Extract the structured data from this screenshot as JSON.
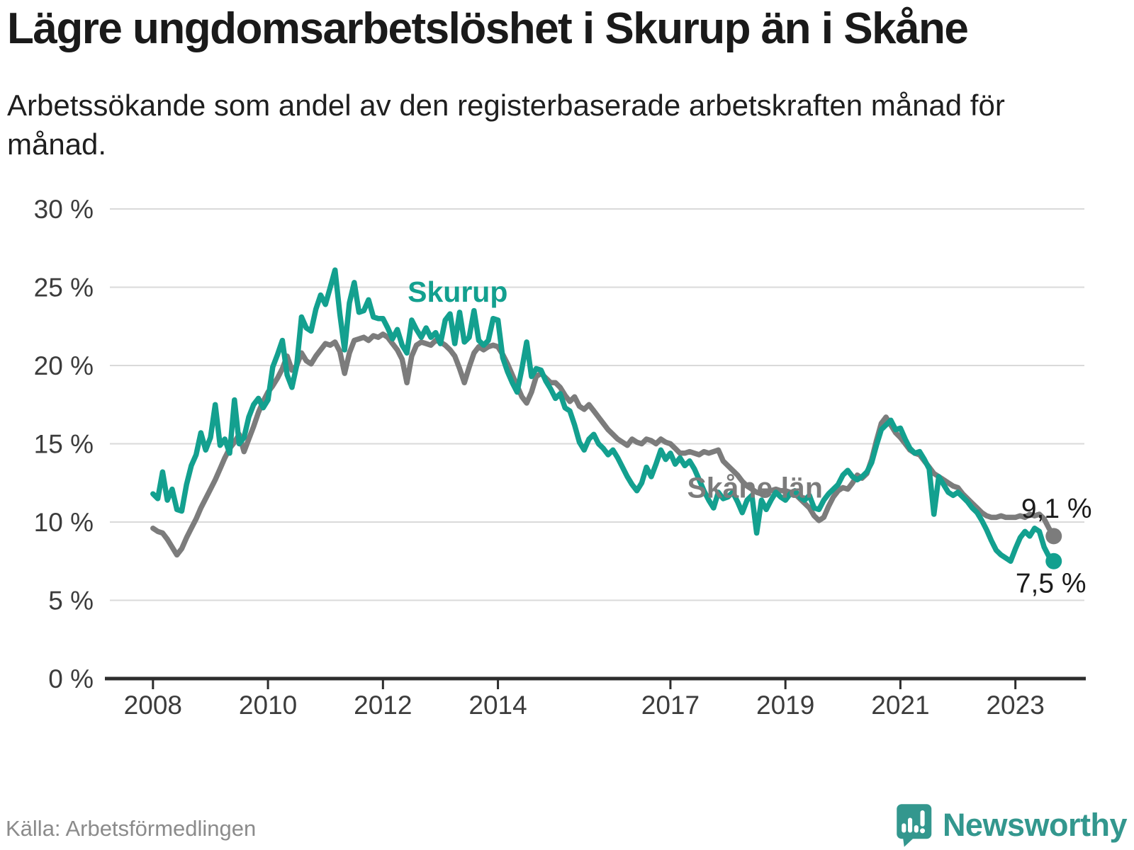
{
  "header": {
    "title": "Lägre ungdomsarbetslöshet i Skurup än i Skåne",
    "subtitle": "Arbetssökande som andel av den registerbaserade arbetskraften månad för månad."
  },
  "footer": {
    "source": "Källa: Arbetsförmedlingen",
    "brand": "Newsworthy"
  },
  "colors": {
    "skurup": "#13a08f",
    "skane": "#7c7c7c",
    "grid": "#dadada",
    "axis": "#2d2d2d",
    "tick_text": "#3c3c3c",
    "end_label_text": "#1b1b1b",
    "brand_teal": "#33978e"
  },
  "chart_data": {
    "type": "line",
    "title": "Lägre ungdomsarbetslöshet i Skurup än i Skåne",
    "xlabel": "",
    "ylabel": "Arbetssökande som andel av den registerbaserade arbetskraften",
    "grid": "horizontal",
    "x_start": 2008,
    "x_step": 0.0833333,
    "xlim": [
      2007.25,
      2024.2
    ],
    "ylim": [
      0,
      30
    ],
    "yticks": [
      {
        "v": 0,
        "label": "0 %"
      },
      {
        "v": 5,
        "label": "5 %"
      },
      {
        "v": 10,
        "label": "10 %"
      },
      {
        "v": 15,
        "label": "15 %"
      },
      {
        "v": 20,
        "label": "20 %"
      },
      {
        "v": 25,
        "label": "25 %"
      },
      {
        "v": 30,
        "label": "30 %"
      }
    ],
    "xticks": [
      {
        "v": 2008,
        "label": "2008"
      },
      {
        "v": 2010,
        "label": "2010"
      },
      {
        "v": 2012,
        "label": "2012"
      },
      {
        "v": 2014,
        "label": "2014"
      },
      {
        "v": 2017,
        "label": "2017"
      },
      {
        "v": 2019,
        "label": "2019"
      },
      {
        "v": 2021,
        "label": "2021"
      },
      {
        "v": 2023,
        "label": "2023"
      }
    ],
    "series": [
      {
        "name": "Skåne län",
        "color": "#7c7c7c",
        "end_label": "9,1 %",
        "end_label_offset": [
          4,
          -26
        ],
        "values": [
          9.6,
          9.4,
          9.3,
          8.9,
          8.4,
          7.9,
          8.3,
          9.0,
          9.6,
          10.2,
          10.9,
          11.5,
          12.1,
          12.7,
          13.4,
          14.1,
          14.7,
          15.1,
          15.6,
          14.5,
          15.3,
          16.1,
          17.0,
          17.7,
          18.3,
          18.7,
          19.2,
          19.8,
          20.6,
          19.7,
          20.0,
          20.8,
          20.3,
          20.1,
          20.6,
          21.0,
          21.4,
          21.3,
          21.5,
          20.9,
          19.5,
          20.8,
          21.6,
          21.7,
          21.8,
          21.6,
          21.9,
          21.8,
          22.0,
          21.8,
          21.4,
          21.0,
          20.4,
          18.9,
          20.6,
          21.3,
          21.5,
          21.4,
          21.3,
          21.6,
          21.5,
          21.3,
          21.0,
          20.6,
          19.8,
          18.9,
          19.9,
          20.8,
          21.2,
          21.0,
          21.2,
          21.3,
          21.2,
          20.7,
          20.1,
          19.4,
          18.7,
          18.0,
          17.6,
          18.3,
          19.3,
          19.5,
          19.2,
          18.9,
          18.9,
          18.6,
          18.1,
          17.7,
          18.0,
          17.4,
          17.2,
          17.5,
          17.1,
          16.7,
          16.3,
          15.9,
          15.6,
          15.3,
          15.1,
          14.9,
          15.3,
          15.1,
          15.0,
          15.3,
          15.2,
          15.0,
          15.3,
          15.1,
          15.0,
          14.7,
          14.4,
          14.4,
          14.5,
          14.4,
          14.3,
          14.5,
          14.4,
          14.5,
          14.6,
          13.9,
          13.6,
          13.3,
          13.0,
          12.6,
          12.3,
          12.1,
          11.9,
          11.8,
          11.9,
          12.0,
          12.1,
          12.0,
          12.0,
          11.9,
          11.8,
          11.5,
          11.2,
          10.9,
          10.4,
          10.1,
          10.3,
          11.0,
          11.6,
          12.0,
          12.2,
          12.1,
          12.5,
          13.0,
          12.8,
          13.1,
          14.0,
          15.2,
          16.3,
          16.7,
          16.2,
          15.7,
          15.4,
          15.0,
          14.6,
          14.4,
          14.3,
          13.9,
          13.5,
          13.1,
          12.9,
          12.7,
          12.5,
          12.3,
          12.2,
          11.8,
          11.5,
          11.2,
          10.9,
          10.6,
          10.4,
          10.3,
          10.3,
          10.4,
          10.3,
          10.3,
          10.3,
          10.4,
          10.3,
          10.5,
          10.4,
          10.5,
          10.2,
          9.6,
          9.1
        ]
      },
      {
        "name": "Skurup",
        "color": "#13a08f",
        "end_label": "7,5 %",
        "end_label_offset": [
          -4,
          44
        ],
        "values": [
          11.8,
          11.5,
          13.2,
          11.4,
          12.1,
          10.8,
          10.7,
          12.4,
          13.6,
          14.3,
          15.7,
          14.6,
          15.4,
          17.5,
          14.9,
          15.3,
          14.4,
          17.8,
          15.0,
          15.4,
          16.7,
          17.5,
          17.9,
          17.3,
          17.8,
          19.9,
          20.7,
          21.6,
          19.4,
          18.6,
          20.0,
          23.1,
          22.4,
          22.2,
          23.6,
          24.5,
          23.9,
          25.0,
          26.1,
          23.3,
          21.0,
          24.0,
          25.3,
          23.4,
          23.5,
          24.2,
          23.1,
          23.0,
          23.0,
          22.4,
          21.7,
          22.3,
          21.3,
          20.8,
          22.9,
          22.3,
          21.8,
          22.4,
          21.8,
          22.1,
          21.4,
          22.9,
          23.3,
          21.4,
          23.4,
          21.5,
          21.8,
          23.5,
          21.6,
          21.3,
          21.6,
          23.0,
          22.9,
          20.5,
          19.6,
          18.9,
          18.3,
          19.8,
          21.5,
          19.3,
          19.8,
          19.7,
          19.0,
          18.5,
          17.9,
          18.2,
          17.3,
          17.1,
          16.2,
          15.1,
          14.6,
          15.3,
          15.6,
          15.0,
          14.7,
          14.3,
          14.6,
          14.1,
          13.5,
          12.9,
          12.4,
          12.0,
          12.5,
          13.5,
          12.9,
          13.7,
          14.6,
          14.0,
          14.4,
          13.7,
          14.1,
          13.6,
          13.9,
          13.4,
          12.7,
          12.0,
          11.4,
          10.9,
          11.9,
          11.5,
          11.6,
          11.9,
          11.3,
          10.6,
          11.4,
          11.7,
          9.3,
          11.4,
          10.8,
          11.4,
          11.9,
          11.6,
          11.4,
          11.8,
          12.0,
          11.6,
          11.4,
          11.7,
          10.9,
          10.8,
          11.4,
          11.8,
          12.1,
          12.4,
          13.0,
          13.3,
          12.9,
          12.7,
          12.9,
          13.2,
          13.8,
          14.9,
          15.9,
          16.2,
          16.5,
          15.9,
          16.0,
          15.3,
          14.7,
          14.4,
          14.5,
          14.0,
          13.4,
          10.5,
          12.9,
          12.4,
          11.9,
          11.7,
          11.9,
          11.6,
          11.3,
          10.9,
          10.6,
          10.1,
          9.5,
          8.8,
          8.2,
          7.9,
          7.7,
          7.5,
          8.3,
          9.0,
          9.4,
          9.1,
          9.6,
          9.4,
          8.4,
          7.8,
          7.5
        ]
      }
    ],
    "series_labels": [
      {
        "text": "Skurup",
        "x": 2013.3,
        "y": 24.7,
        "color": "#13a08f"
      },
      {
        "text": "Skåne län",
        "x": 2018.47,
        "y": 12.2,
        "color": "#7c7c7c"
      }
    ],
    "legend_position": "inline-labels"
  }
}
